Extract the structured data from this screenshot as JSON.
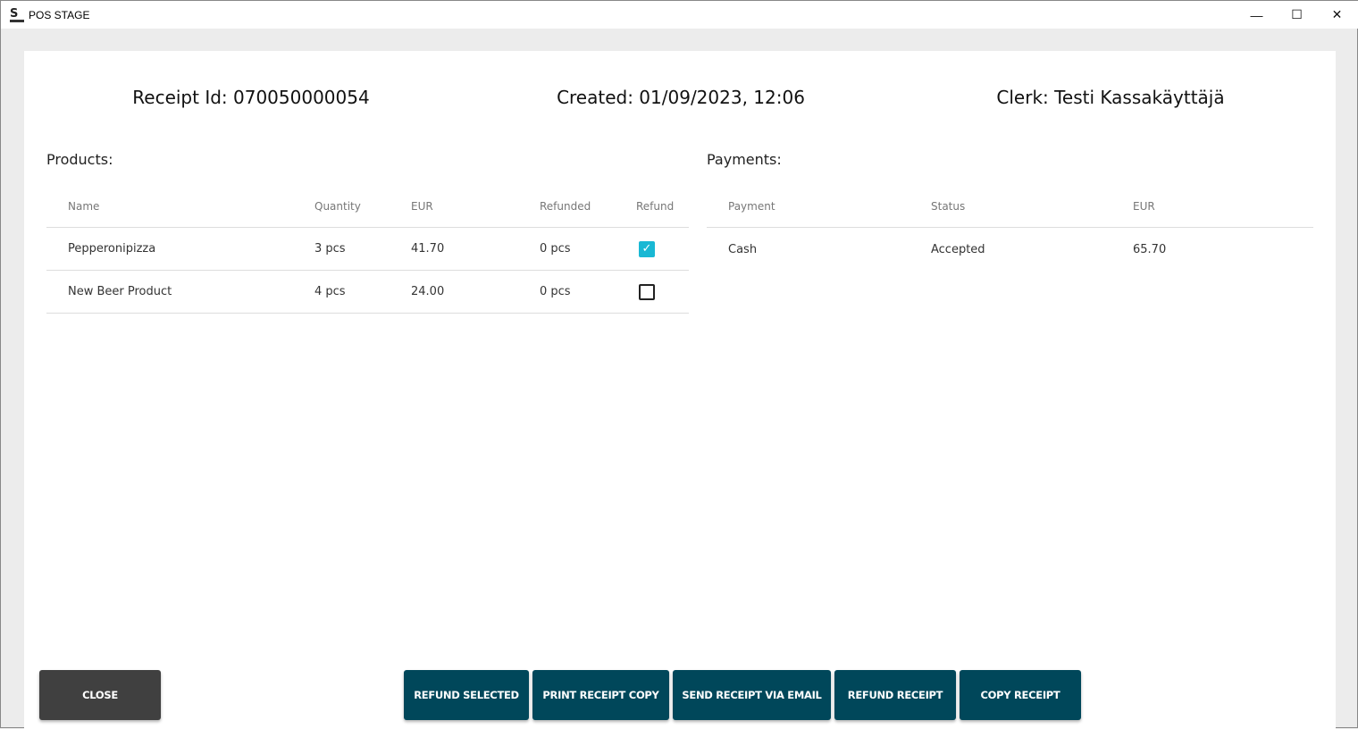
{
  "window": {
    "title": "POS STAGE",
    "minimize": "—",
    "maximize": "☐",
    "close": "✕"
  },
  "header": {
    "receipt_id": "Receipt Id: 070050000054",
    "created": "Created: 01/09/2023, 12:06",
    "clerk": "Clerk: Testi Kassakäyttäjä"
  },
  "products": {
    "title": "Products:",
    "columns": [
      "Name",
      "Quantity",
      "EUR",
      "Refunded",
      "Refund"
    ],
    "rows": [
      {
        "name": "Pepperonipizza",
        "quantity": "3 pcs",
        "eur": "41.70",
        "refunded": "0 pcs",
        "refund": true
      },
      {
        "name": "New Beer Product",
        "quantity": "4 pcs",
        "eur": "24.00",
        "refunded": "0 pcs",
        "refund": false
      }
    ]
  },
  "payments": {
    "title": "Payments:",
    "columns": [
      "Payment",
      "Status",
      "EUR"
    ],
    "rows": [
      {
        "payment": "Cash",
        "status": "Accepted",
        "eur": "65.70"
      }
    ]
  },
  "buttons": {
    "close": "CLOSE",
    "refund_selected": "REFUND SELECTED",
    "print_copy": "PRINT RECEIPT COPY",
    "send_email": "SEND RECEIPT VIA EMAIL",
    "refund_receipt": "REFUND RECEIPT",
    "copy_receipt": "COPY RECEIPT"
  },
  "colors": {
    "primary": "#00475a",
    "close": "#404040",
    "checkbox": "#19b8d4"
  },
  "checkmark": "✓"
}
